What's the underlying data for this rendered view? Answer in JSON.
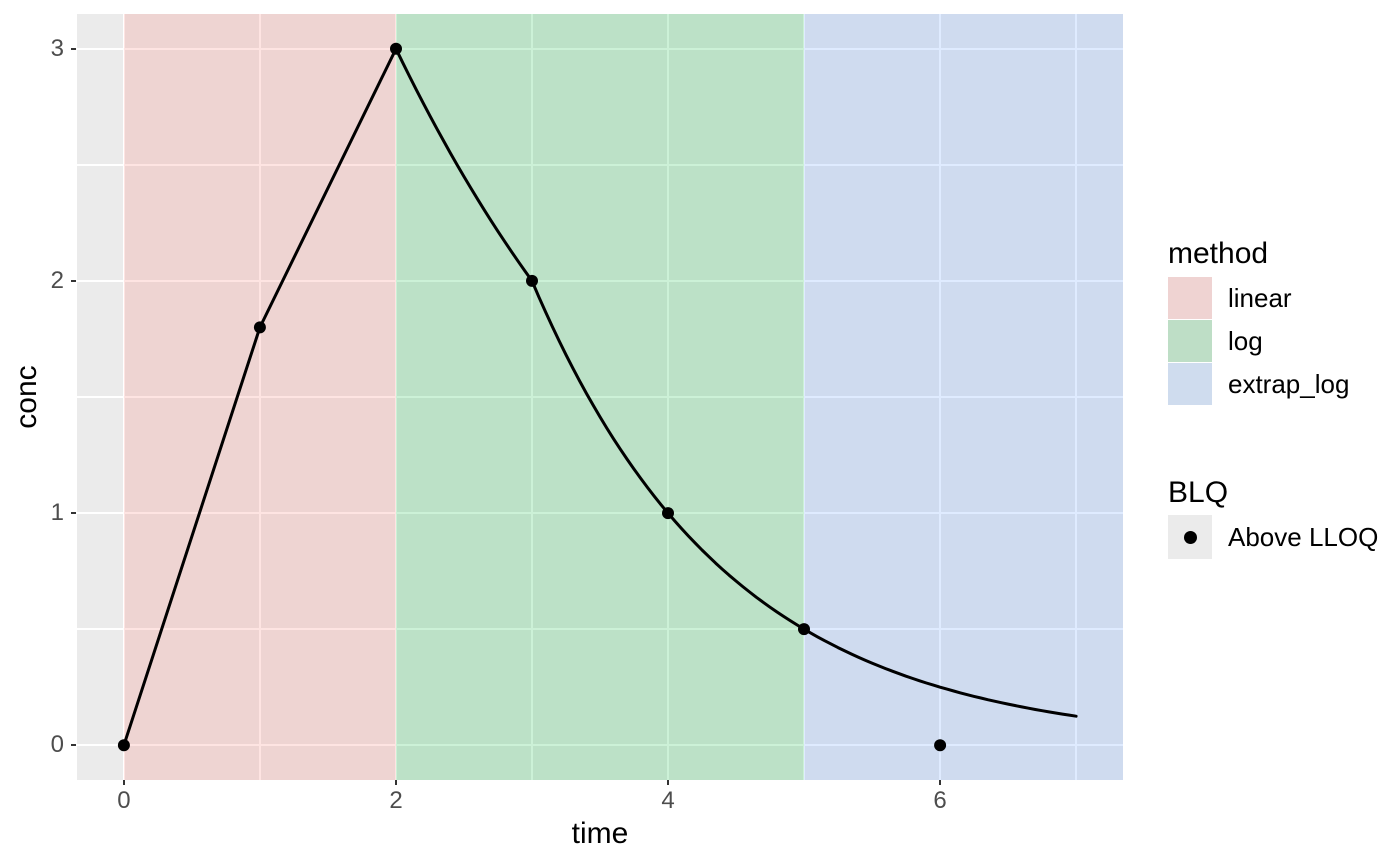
{
  "chart_data": {
    "type": "line",
    "title": "",
    "xlabel": "time",
    "ylabel": "conc",
    "xlim": [
      -0.345,
      7.345
    ],
    "ylim": [
      -0.15,
      3.15
    ],
    "x_ticks": [
      0,
      2,
      4,
      6
    ],
    "x_minor_ticks": [
      1,
      3,
      5,
      7
    ],
    "y_ticks": [
      0,
      1,
      2,
      3
    ],
    "y_minor_ticks": [
      0.5,
      1.5,
      2.5
    ],
    "grid": true,
    "points": [
      {
        "time": 0,
        "conc": 0
      },
      {
        "time": 1,
        "conc": 1.8
      },
      {
        "time": 2,
        "conc": 3
      },
      {
        "time": 3,
        "conc": 2
      },
      {
        "time": 4,
        "conc": 1
      },
      {
        "time": 5,
        "conc": 0.5
      },
      {
        "time": 6,
        "conc": 0
      }
    ],
    "line": {
      "linear_knots": [
        [
          0,
          0
        ],
        [
          1,
          1.8
        ],
        [
          2,
          3
        ]
      ],
      "log_knots": [
        [
          2,
          3
        ],
        [
          3,
          2
        ],
        [
          4,
          1
        ],
        [
          5,
          0.5
        ]
      ],
      "extrapolation": {
        "from": 5,
        "to": 7,
        "start_conc": 0.5,
        "half_life": 1
      },
      "color": "#000000",
      "width": 3
    },
    "point_style": {
      "radius": 6,
      "color": "#000000"
    },
    "regions": [
      {
        "method": "linear",
        "from": 0,
        "to": 2,
        "fill": "rgba(248,118,109,0.2)"
      },
      {
        "method": "log",
        "from": 2,
        "to": 5,
        "fill": "rgba(0,186,56,0.2)"
      },
      {
        "method": "extrap_log",
        "from": 5,
        "to": 7.345,
        "fill": "rgba(97,156,255,0.2)"
      }
    ],
    "colors": {
      "panel_bg": "#ebebeb",
      "grid_major": "#ffffff",
      "grid_minor": "#ffffff",
      "tick_mark": "#333333",
      "tick_label": "#4d4d4d"
    },
    "legend_position": "right"
  },
  "legend": {
    "method": {
      "title": "method",
      "entries": [
        {
          "label": "linear",
          "swatch": "#efd3d2"
        },
        {
          "label": "log",
          "swatch": "#bedec6"
        },
        {
          "label": "extrap_log",
          "swatch": "#cfdcee"
        }
      ]
    },
    "blq": {
      "title": "BLQ",
      "entries": [
        {
          "label": "Above LLOQ",
          "marker": "point-icon",
          "key_bg": "#ebebeb"
        }
      ]
    }
  }
}
